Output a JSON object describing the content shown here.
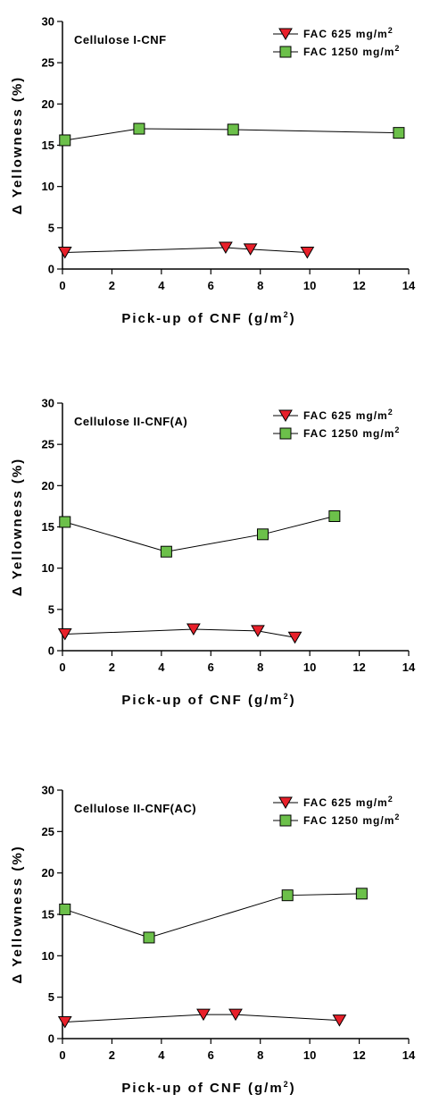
{
  "colors": {
    "fac625": "#e8202a",
    "fac1250": "#6cc04a",
    "axis": "#000000"
  },
  "chart_data": [
    {
      "type": "line",
      "title": "Cellulose I-CNF",
      "xlabel": "Pick-up of CNF (g/m",
      "xlabel_sup": "2",
      "xlabel_end": ")",
      "ylabel": "Δ  Yellowness (%)",
      "xlim": [
        0,
        14
      ],
      "ylim": [
        0,
        30
      ],
      "xticks": [
        "0",
        "2",
        "4",
        "6",
        "8",
        "10",
        "12",
        "14"
      ],
      "yticks": [
        "0",
        "5",
        "10",
        "15",
        "20",
        "25",
        "30"
      ],
      "legend_position": "top-right",
      "series": [
        {
          "name": "FAC 625 mg/m",
          "name_sup": "2",
          "marker": "triangle-down",
          "color_key": "fac625",
          "x": [
            0.1,
            6.6,
            7.6,
            9.9
          ],
          "y": [
            2.0,
            2.6,
            2.4,
            2.0
          ]
        },
        {
          "name": "FAC 1250 mg/m",
          "name_sup": "2",
          "marker": "square",
          "color_key": "fac1250",
          "x": [
            0.1,
            3.1,
            6.9,
            13.6
          ],
          "y": [
            15.6,
            17.0,
            16.9,
            16.5
          ]
        }
      ]
    },
    {
      "type": "line",
      "title": "Cellulose II-CNF(A)",
      "xlabel": "Pick-up of CNF (g/m",
      "xlabel_sup": "2",
      "xlabel_end": ")",
      "ylabel": "Δ  Yellowness (%)",
      "xlim": [
        0,
        14
      ],
      "ylim": [
        0,
        30
      ],
      "xticks": [
        "0",
        "2",
        "4",
        "6",
        "8",
        "10",
        "12",
        "14"
      ],
      "yticks": [
        "0",
        "5",
        "10",
        "15",
        "20",
        "25",
        "30"
      ],
      "legend_position": "top-right",
      "series": [
        {
          "name": "FAC 625 mg/m",
          "name_sup": "2",
          "marker": "triangle-down",
          "color_key": "fac625",
          "x": [
            0.1,
            5.3,
            7.9,
            9.4
          ],
          "y": [
            2.0,
            2.6,
            2.4,
            1.6
          ]
        },
        {
          "name": "FAC 1250 mg/m",
          "name_sup": "2",
          "marker": "square",
          "color_key": "fac1250",
          "x": [
            0.1,
            4.2,
            8.1,
            11.0
          ],
          "y": [
            15.6,
            12.0,
            14.1,
            16.3
          ]
        }
      ]
    },
    {
      "type": "line",
      "title": "Cellulose II-CNF(AC)",
      "xlabel": "Pick-up of CNF (g/m",
      "xlabel_sup": "2",
      "xlabel_end": ")",
      "ylabel": "Δ  Yellowness (%)",
      "xlim": [
        0,
        14
      ],
      "ylim": [
        0,
        30
      ],
      "xticks": [
        "0",
        "2",
        "4",
        "6",
        "8",
        "10",
        "12",
        "14"
      ],
      "yticks": [
        "0",
        "5",
        "10",
        "15",
        "20",
        "25",
        "30"
      ],
      "legend_position": "top-right",
      "series": [
        {
          "name": "FAC 625 mg/m",
          "name_sup": "2",
          "marker": "triangle-down",
          "color_key": "fac625",
          "x": [
            0.1,
            5.7,
            7.0,
            11.2
          ],
          "y": [
            2.0,
            2.9,
            2.9,
            2.2
          ]
        },
        {
          "name": "FAC 1250 mg/m",
          "name_sup": "2",
          "marker": "square",
          "color_key": "fac1250",
          "x": [
            0.1,
            3.5,
            9.1,
            12.1
          ],
          "y": [
            15.6,
            12.2,
            17.3,
            17.5
          ]
        }
      ]
    }
  ]
}
